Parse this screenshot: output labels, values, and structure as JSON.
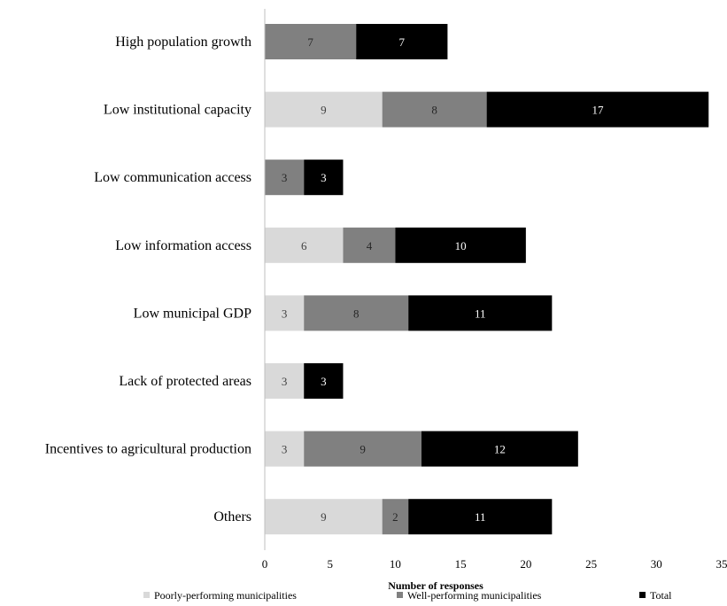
{
  "chart_data": {
    "type": "bar",
    "orientation": "horizontal",
    "stacked": true,
    "categories": [
      "High population growth",
      "Low institutional capacity",
      "Low communication access",
      "Low information access",
      "Low municipal GDP",
      "Lack of protected areas",
      "Incentives to agricultural production",
      "Others"
    ],
    "series": [
      {
        "name": "Poorly-performing municipalities",
        "color": "#d9d9d9",
        "label_color": "#404040",
        "values": [
          0,
          9,
          0,
          6,
          3,
          3,
          3,
          9
        ]
      },
      {
        "name": "Well-performing municipalities",
        "color": "#808080",
        "label_color": "#262626",
        "values": [
          7,
          8,
          3,
          4,
          8,
          0,
          9,
          2
        ]
      },
      {
        "name": "Total",
        "color": "#000000",
        "label_color": "#ffffff",
        "values": [
          7,
          17,
          3,
          10,
          11,
          3,
          12,
          11
        ]
      }
    ],
    "xlabel": "Number of responses",
    "xlim": [
      0,
      35
    ],
    "xticks": [
      0,
      5,
      10,
      15,
      20,
      25,
      30,
      35
    ],
    "grid": false,
    "legend_position": "bottom"
  }
}
